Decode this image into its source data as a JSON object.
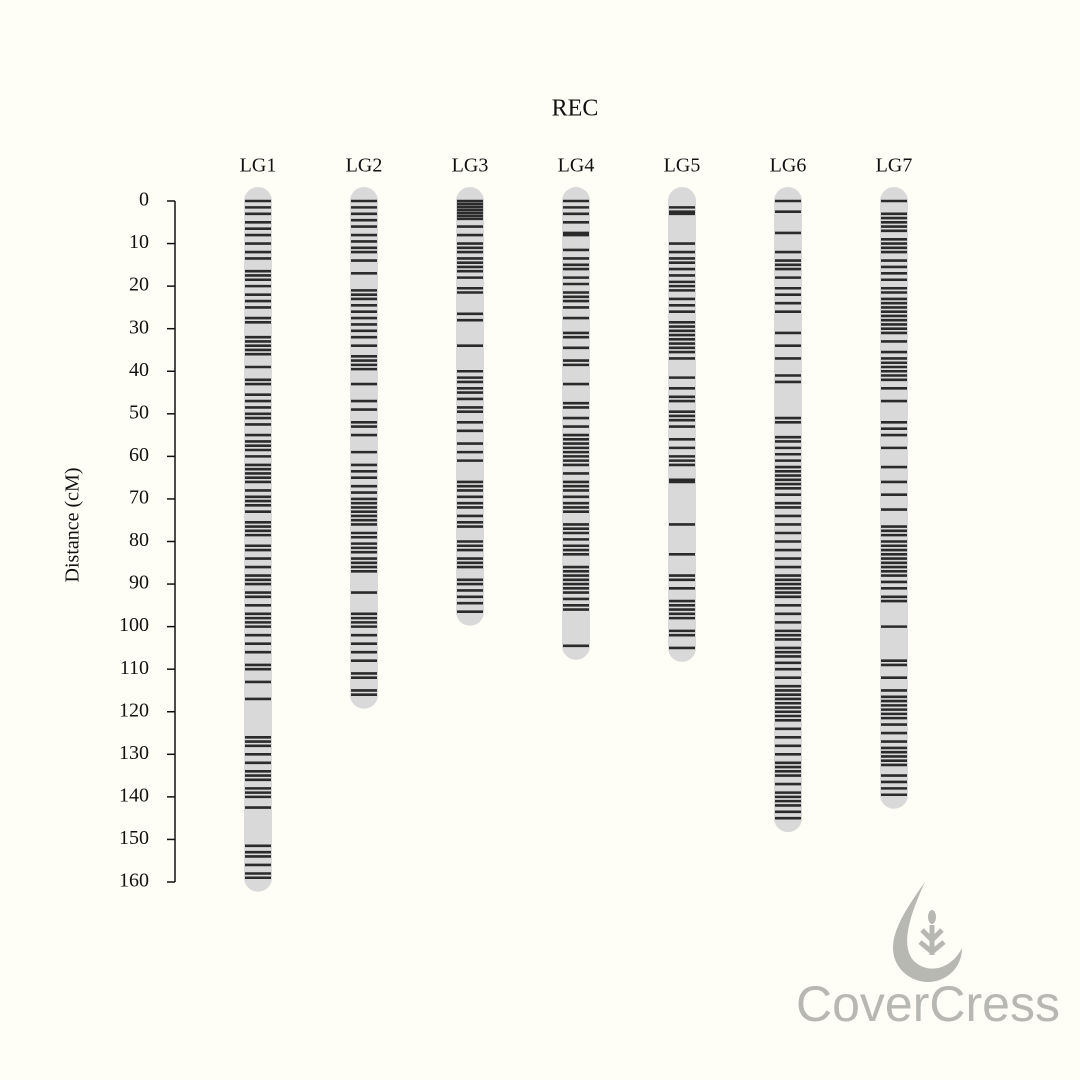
{
  "chart_data": {
    "type": "linkage_map",
    "title": "REC",
    "ylabel": "Distance (cM)",
    "ylim": [
      0,
      160
    ],
    "yticks": [
      0,
      10,
      20,
      30,
      40,
      50,
      60,
      70,
      80,
      90,
      100,
      110,
      120,
      130,
      140,
      150,
      160
    ],
    "bar_color": "#d9d9d9",
    "marker_color": "#2b2b2b",
    "groups": [
      {
        "name": "LG1",
        "length": 159,
        "markers": [
          0,
          1.5,
          3,
          5,
          6.5,
          8,
          10,
          12,
          13.5,
          16.5,
          17.5,
          18.5,
          20,
          22,
          23.5,
          25,
          27.5,
          28.5,
          32,
          33,
          34,
          35,
          36,
          39,
          42,
          43,
          45.5,
          47,
          48.5,
          50,
          51,
          52.5,
          55,
          56.5,
          57.5,
          58.5,
          60,
          62,
          63,
          64,
          65,
          66,
          68,
          69.5,
          70.5,
          71.5,
          73,
          75.5,
          76.5,
          77.5,
          78.5,
          81,
          82,
          84,
          86,
          88,
          89,
          90,
          92,
          93,
          95,
          97,
          98,
          99,
          100,
          102,
          104,
          106,
          109,
          110,
          113,
          117,
          126,
          127,
          128,
          130,
          132,
          134,
          135,
          136,
          138,
          139,
          140,
          142.5,
          151.5,
          153,
          154,
          156,
          158,
          159
        ]
      },
      {
        "name": "LG2",
        "length": 116,
        "markers": [
          0,
          1.5,
          3,
          4.5,
          6,
          8,
          9.5,
          11,
          12,
          14,
          17,
          21,
          22,
          23,
          24.5,
          26,
          27.5,
          29,
          30.5,
          32,
          34,
          36.5,
          37.5,
          38.5,
          39.5,
          43,
          47,
          49,
          52,
          53,
          55,
          59,
          62,
          63.5,
          65,
          67,
          68.5,
          70,
          71,
          72,
          73,
          74,
          75,
          76,
          78,
          79,
          80.5,
          81.5,
          82.5,
          84,
          85,
          86,
          87,
          92,
          97,
          98,
          99,
          100,
          102,
          104,
          106,
          108,
          111,
          112,
          115,
          116
        ]
      },
      {
        "name": "LG3",
        "length": 96.5,
        "markers": [
          0,
          0.7,
          1.4,
          2.1,
          2.8,
          3.5,
          4.2,
          6,
          8,
          10,
          11,
          12,
          13.5,
          14.5,
          15.5,
          16.5,
          18,
          20.5,
          21.5,
          26.5,
          28,
          34,
          40,
          41.5,
          42.5,
          44,
          45,
          46.5,
          48.5,
          49.5,
          52,
          54,
          57,
          59,
          61,
          66,
          67,
          68,
          69.5,
          71,
          72,
          74,
          75.5,
          76.5,
          80,
          81,
          82,
          84,
          85,
          86,
          89,
          90,
          91.5,
          93,
          94.5,
          96.5
        ]
      },
      {
        "name": "LG4",
        "length": 104.5,
        "markers": [
          0,
          1.5,
          3,
          5,
          7.5,
          8,
          11.5,
          13.5,
          15,
          16,
          18,
          19.5,
          21.5,
          22.5,
          23.5,
          25,
          27.5,
          31,
          32,
          34.5,
          37.5,
          38.5,
          43,
          47.5,
          48.5,
          51,
          53,
          55,
          56,
          57,
          58,
          59,
          60,
          61,
          62,
          64,
          66,
          67,
          68,
          69.5,
          71,
          72,
          73,
          76,
          77,
          78,
          79.5,
          81,
          82,
          83,
          86,
          87,
          88,
          89,
          90,
          91,
          92,
          93.5,
          95,
          96,
          104.5
        ]
      },
      {
        "name": "LG5",
        "length": 105,
        "markers": [
          1.5,
          2.5,
          3,
          10,
          12,
          13.5,
          14.5,
          16,
          17.5,
          19,
          20,
          21,
          23,
          24.5,
          26,
          28.5,
          29.5,
          30.5,
          31.5,
          32.5,
          33.5,
          34.5,
          35.5,
          37,
          41.5,
          44,
          46,
          47,
          49.5,
          50.5,
          51.5,
          53,
          56,
          58,
          60,
          61,
          62,
          65.5,
          66,
          76,
          83,
          88,
          89,
          91,
          94,
          95,
          96,
          97,
          98,
          101,
          102,
          105
        ]
      },
      {
        "name": "LG6",
        "length": 145,
        "markers": [
          0,
          2.5,
          7.5,
          12,
          14,
          15,
          16,
          18,
          20.5,
          22,
          24,
          26,
          31,
          34,
          37,
          41,
          42.5,
          51,
          52,
          55.5,
          56.5,
          58,
          59.5,
          61,
          62.5,
          63.5,
          64.5,
          65.5,
          66.5,
          67.5,
          69,
          71,
          72,
          74,
          76,
          78,
          80,
          82,
          84,
          86,
          88,
          89,
          90,
          91,
          92,
          93,
          95,
          97,
          99,
          101,
          102,
          103,
          105,
          106,
          107,
          108.5,
          110,
          112,
          114,
          115,
          116,
          117,
          118,
          119,
          120,
          121,
          122,
          124,
          126,
          128,
          130,
          132,
          133,
          134,
          135,
          137,
          139,
          140,
          141,
          142,
          143.5,
          145
        ]
      },
      {
        "name": "LG7",
        "length": 139.5,
        "markers": [
          0,
          3,
          4,
          5,
          6,
          7,
          9,
          10,
          11,
          12,
          14,
          15.5,
          17,
          18.5,
          20.5,
          21.5,
          23,
          24,
          25,
          26,
          27,
          28,
          29,
          30,
          31,
          33,
          35.5,
          37,
          38,
          39,
          40,
          41,
          42,
          44,
          47,
          52,
          53.5,
          55,
          58,
          62.5,
          66,
          69,
          72.5,
          76.5,
          77.5,
          78.5,
          80,
          81,
          82,
          83,
          84,
          85,
          86,
          87,
          88,
          89.5,
          91,
          93,
          94,
          100,
          108,
          109,
          112,
          115,
          116.5,
          117.5,
          118.5,
          119.5,
          120.5,
          121.5,
          123,
          125,
          127,
          128.5,
          129.5,
          130.5,
          131.5,
          132.5,
          135,
          136.5,
          138,
          139.5
        ]
      }
    ]
  },
  "watermark": "CoverCress"
}
